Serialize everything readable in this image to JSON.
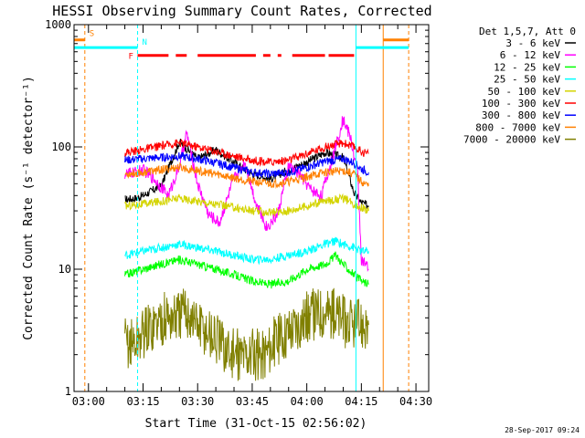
{
  "chart_data": {
    "type": "line",
    "title": "HESSI Observing Summary Count Rates, Corrected",
    "xlabel": "Start Time (31-Oct-15 02:56:02)",
    "ylabel": "Corrected Count Rate (s⁻¹ detector⁻¹)",
    "y_scale": "log",
    "xlim": [
      "02:56:02",
      "04:33:30"
    ],
    "ylim": [
      1,
      1000
    ],
    "x_tick_labels": [
      "03:00",
      "03:15",
      "03:30",
      "03:45",
      "04:00",
      "04:15",
      "04:30"
    ],
    "y_tick_labels": [
      "1",
      "10",
      "100",
      "1000"
    ],
    "grid": false,
    "legend": {
      "placement": "right",
      "header": "Det 1,5,7, Att 0",
      "entries": [
        {
          "label": "3 - 6 keV",
          "color": "#000000"
        },
        {
          "label": "6 - 12 keV",
          "color": "#ff00ff"
        },
        {
          "label": "12 - 25 keV",
          "color": "#00ff00"
        },
        {
          "label": "25 - 50 keV",
          "color": "#00ffff"
        },
        {
          "label": "50 - 100 keV",
          "color": "#d4d400"
        },
        {
          "label": "100 - 300 keV",
          "color": "#ff0000"
        },
        {
          "label": "300 - 800 keV",
          "color": "#0000ff"
        },
        {
          "label": "800 - 7000 keV",
          "color": "#ff8000"
        },
        {
          "label": "7000 - 20000 keV",
          "color": "#808000"
        }
      ]
    },
    "series": [
      {
        "name": "3 - 6 keV",
        "color": "#000000",
        "x": [
          "03:10",
          "03:13",
          "03:15",
          "03:20",
          "03:25",
          "03:30",
          "03:35",
          "03:40",
          "03:45",
          "03:50",
          "03:55",
          "04:00",
          "04:05",
          "04:10",
          "04:13",
          "04:15",
          "04:17"
        ],
        "y": [
          37,
          38,
          40,
          48,
          110,
          80,
          95,
          75,
          60,
          55,
          65,
          75,
          90,
          82,
          42,
          35,
          33
        ]
      },
      {
        "name": "6 - 12 keV",
        "color": "#ff00ff",
        "x": [
          "03:10",
          "03:13",
          "03:15",
          "03:18",
          "03:22",
          "03:25",
          "03:27",
          "03:30",
          "03:33",
          "03:36",
          "03:40",
          "03:43",
          "03:46",
          "03:49",
          "03:52",
          "03:55",
          "03:58",
          "04:01",
          "04:04",
          "04:07",
          "04:10",
          "04:12",
          "04:14",
          "04:15",
          "04:17"
        ],
        "y": [
          60,
          62,
          65,
          55,
          40,
          70,
          130,
          50,
          28,
          24,
          55,
          75,
          35,
          22,
          28,
          70,
          60,
          45,
          40,
          80,
          170,
          120,
          60,
          12,
          10
        ]
      },
      {
        "name": "12 - 25 keV",
        "color": "#00ff00",
        "x": [
          "03:10",
          "03:15",
          "03:20",
          "03:25",
          "03:30",
          "03:35",
          "03:40",
          "03:45",
          "03:50",
          "03:55",
          "04:00",
          "04:05",
          "04:08",
          "04:10",
          "04:13",
          "04:15",
          "04:17"
        ],
        "y": [
          9,
          10,
          11,
          12,
          11,
          10,
          9,
          8,
          7.5,
          8,
          10,
          11,
          13,
          11,
          9,
          8,
          7.5
        ]
      },
      {
        "name": "25 - 50 keV",
        "color": "#00ffff",
        "x": [
          "03:10",
          "03:15",
          "03:20",
          "03:25",
          "03:30",
          "03:35",
          "03:40",
          "03:45",
          "03:50",
          "03:55",
          "04:00",
          "04:05",
          "04:08",
          "04:10",
          "04:13",
          "04:15",
          "04:17"
        ],
        "y": [
          13,
          14,
          15,
          16,
          15,
          14,
          13,
          12,
          12,
          13,
          14,
          16,
          17,
          16,
          15,
          14,
          14
        ]
      },
      {
        "name": "50 - 100 keV",
        "color": "#d4d400",
        "x": [
          "03:10",
          "03:15",
          "03:20",
          "03:25",
          "03:30",
          "03:35",
          "03:40",
          "03:45",
          "03:50",
          "03:55",
          "04:00",
          "04:05",
          "04:10",
          "04:13",
          "04:15",
          "04:17"
        ],
        "y": [
          33,
          34,
          36,
          38,
          36,
          34,
          32,
          30,
          29,
          30,
          33,
          36,
          38,
          34,
          32,
          30
        ]
      },
      {
        "name": "100 - 300 keV",
        "color": "#ff0000",
        "x": [
          "03:10",
          "03:15",
          "03:20",
          "03:25",
          "03:30",
          "03:35",
          "03:40",
          "03:45",
          "03:50",
          "03:55",
          "04:00",
          "04:05",
          "04:10",
          "04:13",
          "04:15",
          "04:17"
        ],
        "y": [
          90,
          95,
          102,
          108,
          100,
          92,
          84,
          78,
          75,
          78,
          88,
          100,
          108,
          100,
          92,
          88
        ]
      },
      {
        "name": "300 - 800 keV",
        "color": "#0000ff",
        "x": [
          "03:10",
          "03:15",
          "03:20",
          "03:25",
          "03:30",
          "03:35",
          "03:40",
          "03:45",
          "03:50",
          "03:55",
          "04:00",
          "04:05",
          "04:10",
          "04:13",
          "04:15",
          "04:17"
        ],
        "y": [
          78,
          80,
          82,
          84,
          80,
          74,
          68,
          62,
          60,
          62,
          68,
          76,
          80,
          74,
          66,
          62
        ]
      },
      {
        "name": "800 - 7000 keV",
        "color": "#ff8000",
        "x": [
          "03:10",
          "03:15",
          "03:20",
          "03:25",
          "03:30",
          "03:35",
          "03:40",
          "03:45",
          "03:50",
          "03:55",
          "04:00",
          "04:05",
          "04:10",
          "04:13",
          "04:15",
          "04:17"
        ],
        "y": [
          60,
          62,
          65,
          68,
          64,
          60,
          56,
          52,
          50,
          52,
          57,
          62,
          64,
          60,
          52,
          48
        ]
      },
      {
        "name": "7000 - 20000 keV",
        "color": "#808000",
        "x": [
          "03:10",
          "03:13",
          "03:15",
          "03:18",
          "03:21",
          "03:24",
          "03:27",
          "03:30",
          "03:33",
          "03:36",
          "03:39",
          "03:42",
          "03:45",
          "03:48",
          "03:51",
          "03:54",
          "03:57",
          "04:00",
          "04:03",
          "04:06",
          "04:09",
          "04:12",
          "04:14",
          "04:17"
        ],
        "y": [
          2.5,
          2.5,
          3,
          3.5,
          4,
          4,
          4.5,
          3.5,
          3,
          2.5,
          2,
          2,
          2,
          2,
          2.5,
          3,
          3.5,
          4,
          4.5,
          4.5,
          4,
          3.5,
          3.5,
          3.5
        ]
      }
    ],
    "annotations": {
      "flags": [
        {
          "label": "S",
          "color": "#ff8000",
          "y": 750,
          "segments": [
            [
              "02:56:02",
              "02:59:00"
            ],
            [
              "04:21:00",
              "04:28:00"
            ]
          ]
        },
        {
          "label": "N",
          "color": "#00ffff",
          "y": 650,
          "segments": [
            [
              "02:56:02",
              "03:13:30"
            ],
            [
              "04:13:30",
              "04:28:00"
            ]
          ]
        },
        {
          "label": "F",
          "color": "#ff0000",
          "y": 560,
          "segments": [
            [
              "03:13:30",
              "03:22:00"
            ],
            [
              "03:24:00",
              "03:27:00"
            ],
            [
              "03:30:00",
              "03:46:00"
            ],
            [
              "03:48:00",
              "03:50:00"
            ],
            [
              "03:52:00",
              "03:53:00"
            ],
            [
              "03:56:00",
              "04:05:00"
            ],
            [
              "04:06:00",
              "04:13:00"
            ]
          ]
        }
      ],
      "vertical_lines": [
        {
          "x": "02:59:00",
          "color": "#ff8000",
          "style": "dashed"
        },
        {
          "x": "03:13:30",
          "color": "#00ffff",
          "style": "dashed"
        },
        {
          "x": "04:13:30",
          "color": "#00ffff",
          "style": "solid"
        },
        {
          "x": "04:21:00",
          "color": "#ff8000",
          "style": "solid"
        },
        {
          "x": "04:28:00",
          "color": "#ff8000",
          "style": "dashed"
        }
      ]
    }
  },
  "timestamp": "28-Sep-2017 09:24"
}
